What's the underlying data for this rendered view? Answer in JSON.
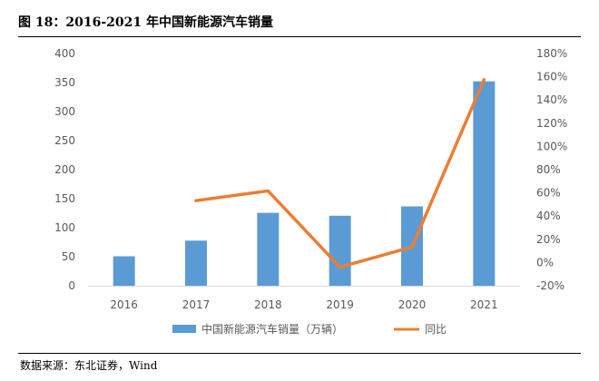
{
  "figure": {
    "title": "图 18：2016-2021 年中国新能源汽车销量",
    "source": "数据来源：东北证券，Wind"
  },
  "colors": {
    "bar": "#5B9BD5",
    "line": "#ED7D31",
    "axis": "#D9D9D9",
    "tick_text": "#595959"
  },
  "chart_data": {
    "type": "bar",
    "categories": [
      "2016",
      "2017",
      "2018",
      "2019",
      "2020",
      "2021"
    ],
    "series": [
      {
        "name": "中国新能源汽车销量（万辆）",
        "type": "bar",
        "axis": "left",
        "values": [
          50.7,
          77.7,
          125.6,
          120.6,
          136.7,
          352.1
        ]
      },
      {
        "name": "同比",
        "type": "line",
        "axis": "right",
        "values": [
          null,
          53.3,
          61.7,
          -4.0,
          13.4,
          157.5
        ]
      }
    ],
    "y_left": {
      "ylim": [
        0,
        400
      ],
      "ticks": [
        "0",
        "50",
        "100",
        "150",
        "200",
        "250",
        "300",
        "350",
        "400"
      ]
    },
    "y_right": {
      "ylim": [
        -20,
        180
      ],
      "ticks": [
        "-20%",
        "0%",
        "20%",
        "40%",
        "60%",
        "80%",
        "100%",
        "120%",
        "140%",
        "160%",
        "180%"
      ]
    },
    "grid": false,
    "legend": "bottom"
  }
}
